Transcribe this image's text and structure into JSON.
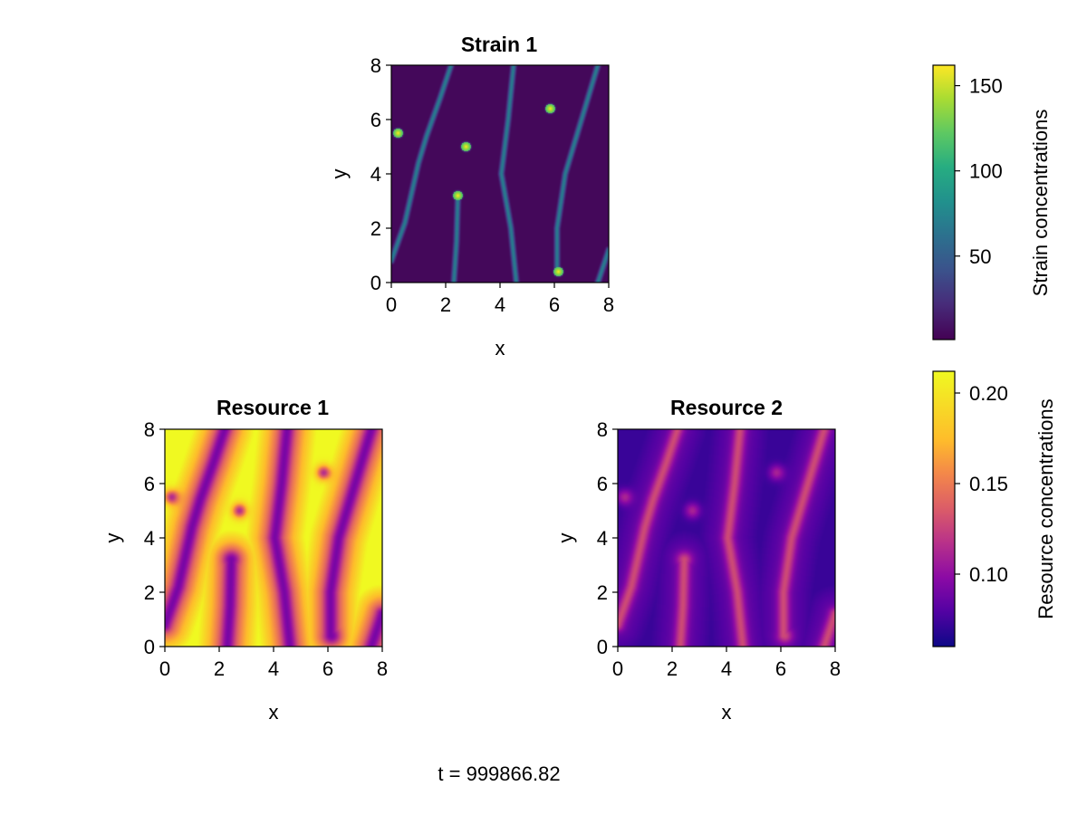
{
  "footer": {
    "time_label": "t = 999866.82"
  },
  "chart_data": [
    {
      "type": "heatmap",
      "panel": "strain-1",
      "title": "Strain 1",
      "xlabel": "x",
      "ylabel": "y",
      "xlim": [
        0,
        8
      ],
      "ylim": [
        0,
        8
      ],
      "xticks": [
        "0",
        "2",
        "4",
        "6",
        "8"
      ],
      "yticks": [
        "0",
        "2",
        "4",
        "6",
        "8"
      ],
      "colormap": "viridis",
      "colorbar": "strain",
      "field": {
        "ridges": [
          {
            "points": [
              [
                0.0,
                0.8
              ],
              [
                0.5,
                2.2
              ],
              [
                1.0,
                4.4
              ],
              [
                1.3,
                5.4
              ],
              [
                1.8,
                6.8
              ],
              [
                2.2,
                8.0
              ]
            ]
          },
          {
            "points": [
              [
                2.3,
                0.0
              ],
              [
                2.4,
                1.5
              ],
              [
                2.45,
                3.2
              ]
            ]
          },
          {
            "points": [
              [
                4.6,
                0.0
              ],
              [
                4.4,
                2.0
              ],
              [
                4.05,
                4.0
              ],
              [
                4.3,
                6.0
              ],
              [
                4.5,
                8.0
              ]
            ]
          },
          {
            "points": [
              [
                6.1,
                0.4
              ],
              [
                6.1,
                2.0
              ],
              [
                6.4,
                4.0
              ],
              [
                7.0,
                6.0
              ],
              [
                7.6,
                8.0
              ]
            ]
          },
          {
            "points": [
              [
                7.6,
                0.0
              ],
              [
                8.0,
                1.2
              ]
            ]
          }
        ],
        "spots": [
          [
            0.25,
            5.5
          ],
          [
            2.75,
            5.0
          ],
          [
            5.85,
            6.4
          ],
          [
            2.45,
            3.2
          ],
          [
            6.15,
            0.4
          ]
        ],
        "background": 0.02,
        "ridge_level": 0.42,
        "spot_level": 1.0
      }
    },
    {
      "type": "heatmap",
      "panel": "resource-1",
      "title": "Resource 1",
      "xlabel": "x",
      "ylabel": "y",
      "xlim": [
        0,
        8
      ],
      "ylim": [
        0,
        8
      ],
      "xticks": [
        "0",
        "2",
        "4",
        "6",
        "8"
      ],
      "yticks": [
        "0",
        "2",
        "4",
        "6",
        "8"
      ],
      "colormap": "plasma",
      "colorbar": "resource",
      "field": {
        "mode": "inverse",
        "ridges": [
          {
            "points": [
              [
                0.0,
                0.8
              ],
              [
                0.5,
                2.2
              ],
              [
                1.0,
                4.4
              ],
              [
                1.3,
                5.4
              ],
              [
                1.8,
                6.8
              ],
              [
                2.2,
                8.0
              ]
            ]
          },
          {
            "points": [
              [
                2.3,
                0.0
              ],
              [
                2.4,
                1.5
              ],
              [
                2.45,
                3.2
              ]
            ]
          },
          {
            "points": [
              [
                4.6,
                0.0
              ],
              [
                4.4,
                2.0
              ],
              [
                4.05,
                4.0
              ],
              [
                4.3,
                6.0
              ],
              [
                4.5,
                8.0
              ]
            ]
          },
          {
            "points": [
              [
                6.1,
                0.4
              ],
              [
                6.1,
                2.0
              ],
              [
                6.4,
                4.0
              ],
              [
                7.0,
                6.0
              ],
              [
                7.6,
                8.0
              ]
            ]
          },
          {
            "points": [
              [
                7.6,
                0.0
              ],
              [
                8.0,
                1.2
              ]
            ]
          }
        ],
        "spots": [
          [
            0.25,
            5.5
          ],
          [
            2.75,
            5.0
          ],
          [
            5.85,
            6.4
          ],
          [
            2.45,
            3.2
          ],
          [
            6.15,
            0.4
          ]
        ]
      }
    },
    {
      "type": "heatmap",
      "panel": "resource-2",
      "title": "Resource 2",
      "xlabel": "x",
      "ylabel": "y",
      "xlim": [
        0,
        8
      ],
      "ylim": [
        0,
        8
      ],
      "xticks": [
        "0",
        "2",
        "4",
        "6",
        "8"
      ],
      "yticks": [
        "0",
        "2",
        "4",
        "6",
        "8"
      ],
      "colormap": "plasma",
      "colorbar": "resource",
      "field": {
        "mode": "direct",
        "ridges": [
          {
            "points": [
              [
                0.0,
                0.8
              ],
              [
                0.5,
                2.2
              ],
              [
                1.0,
                4.4
              ],
              [
                1.3,
                5.4
              ],
              [
                1.8,
                6.8
              ],
              [
                2.2,
                8.0
              ]
            ]
          },
          {
            "points": [
              [
                2.3,
                0.0
              ],
              [
                2.4,
                1.5
              ],
              [
                2.45,
                3.2
              ]
            ]
          },
          {
            "points": [
              [
                4.6,
                0.0
              ],
              [
                4.4,
                2.0
              ],
              [
                4.05,
                4.0
              ],
              [
                4.3,
                6.0
              ],
              [
                4.5,
                8.0
              ]
            ]
          },
          {
            "points": [
              [
                6.1,
                0.4
              ],
              [
                6.1,
                2.0
              ],
              [
                6.4,
                4.0
              ],
              [
                7.0,
                6.0
              ],
              [
                7.6,
                8.0
              ]
            ]
          },
          {
            "points": [
              [
                7.6,
                0.0
              ],
              [
                8.0,
                1.2
              ]
            ]
          }
        ],
        "spots": [
          [
            0.25,
            5.5
          ],
          [
            2.75,
            5.0
          ],
          [
            5.85,
            6.4
          ],
          [
            2.45,
            3.2
          ],
          [
            6.15,
            0.4
          ]
        ]
      }
    }
  ],
  "colorbars": {
    "strain": {
      "label": "Strain concentrations",
      "colormap": "viridis",
      "range": [
        1,
        162
      ],
      "ticks": [
        50,
        100,
        150
      ],
      "tick_labels": [
        "50",
        "100",
        "150"
      ]
    },
    "resource": {
      "label": "Resource concentrations",
      "colormap": "plasma",
      "range": [
        0.06,
        0.212
      ],
      "ticks": [
        0.1,
        0.15,
        0.2
      ],
      "tick_labels": [
        "0.10",
        "0.15",
        "0.20"
      ]
    }
  }
}
